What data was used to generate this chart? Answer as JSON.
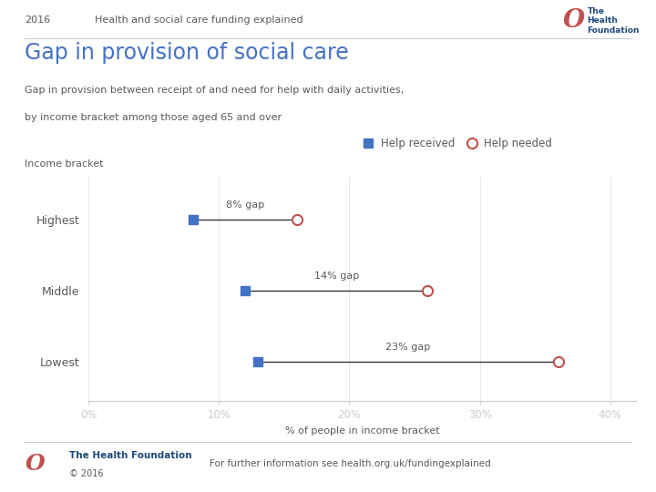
{
  "title": "Gap in provision of social care",
  "subtitle1": "Gap in provision between receipt of and need for help with daily activities,",
  "subtitle2": "by income bracket among those aged 65 and over",
  "header_year": "2016",
  "header_title": "Health and social care funding explained",
  "categories": [
    "Highest",
    "Middle",
    "Lowest"
  ],
  "help_received": [
    8,
    12,
    13
  ],
  "help_needed": [
    16,
    26,
    36
  ],
  "gap_labels": [
    "8% gap",
    "14% gap",
    "23% gap"
  ],
  "xlabel": "% of people in income bracket",
  "ylabel": "Income bracket",
  "xlim": [
    0,
    42
  ],
  "xticks": [
    0,
    10,
    20,
    30,
    40
  ],
  "xtick_labels": [
    "0%",
    "10%",
    "20%",
    "30%",
    "40%"
  ],
  "square_color": "#4472C4",
  "circle_color": "#C0504D",
  "line_color": "#333333",
  "label_color": "#595959",
  "title_color": "#4472C4",
  "subtitle_color": "#595959",
  "header_color": "#595959",
  "legend_color": "#595959",
  "footer_org": "The Health Foundation",
  "footer_url": "For further information see health.org.uk/fundingexplained",
  "footer_year": "© 2016",
  "footer_logo_color": "#C0504D",
  "footer_org_color": "#1F497D",
  "footer_url_color": "#595959",
  "divider_color": "#CCCCCC",
  "grid_color": "#E0E0E0",
  "background_color": "#FFFFFF"
}
